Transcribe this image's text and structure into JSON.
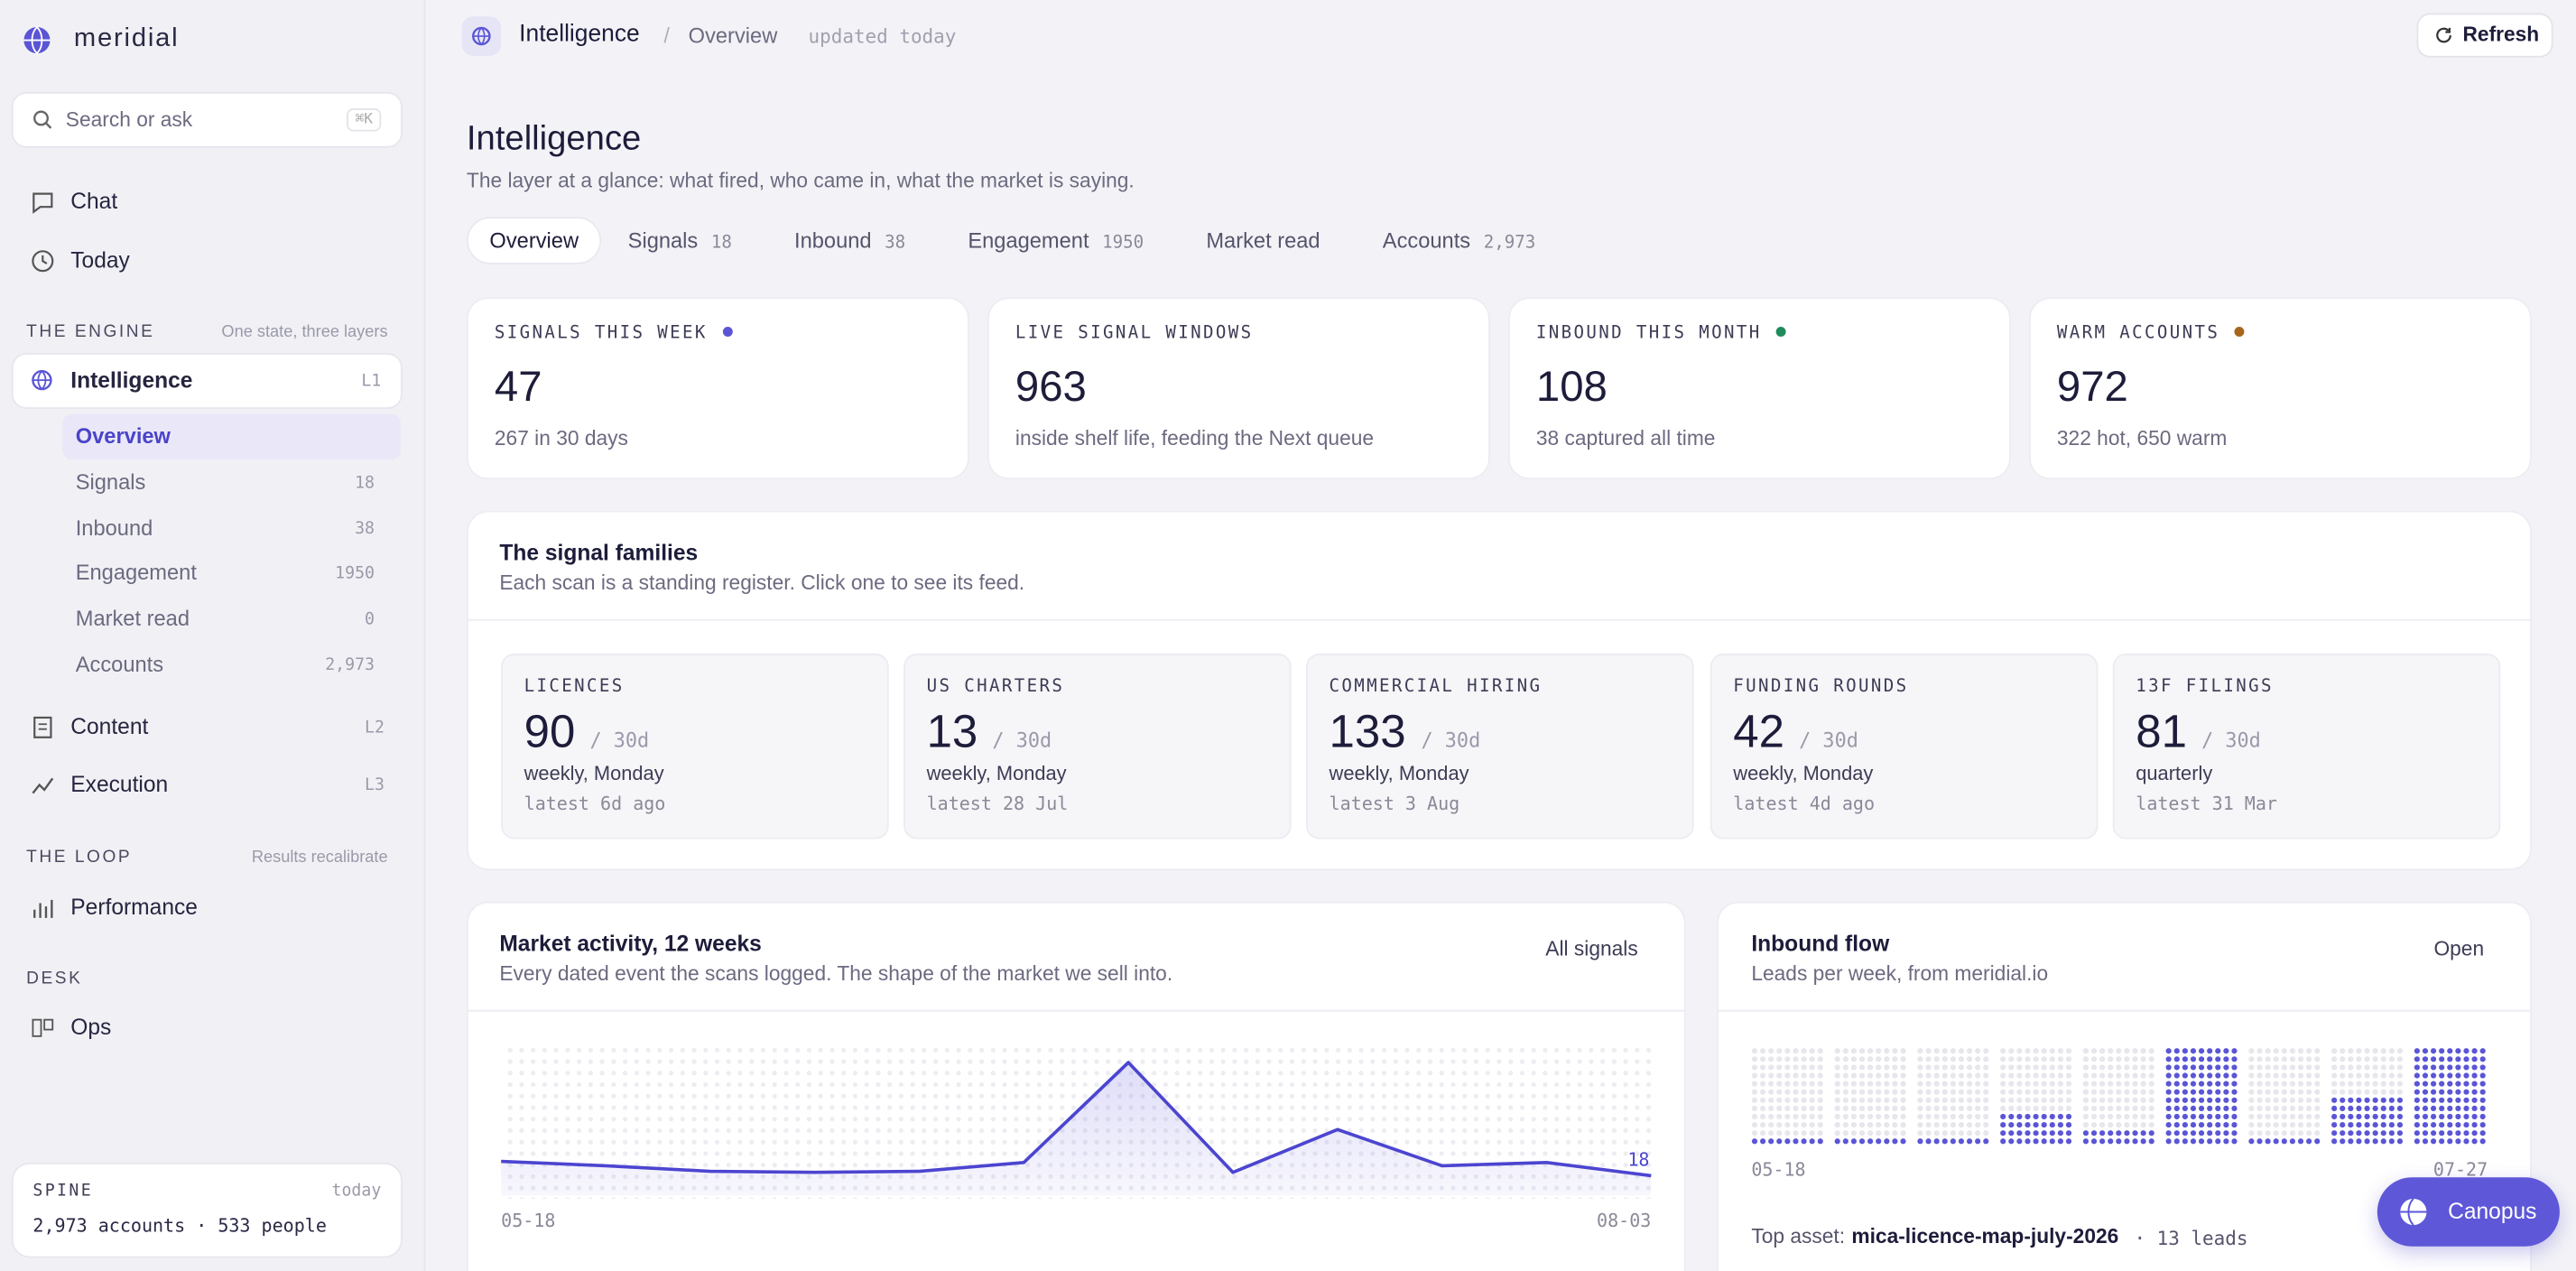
{
  "brand": "meridial",
  "sidebar": {
    "search": "Search or ask",
    "shortcut": "⌘K",
    "top": [
      "Chat",
      "Today"
    ],
    "engine": {
      "title": "THE ENGINE",
      "note": "One state, three layers"
    },
    "intelligence": {
      "label": "Intelligence",
      "level": "L1"
    },
    "subitems": [
      {
        "label": "Overview",
        "count": ""
      },
      {
        "label": "Signals",
        "count": "18"
      },
      {
        "label": "Inbound",
        "count": "38"
      },
      {
        "label": "Engagement",
        "count": "1950"
      },
      {
        "label": "Market read",
        "count": "0"
      },
      {
        "label": "Accounts",
        "count": "2,973"
      }
    ],
    "content": {
      "label": "Content",
      "level": "L2"
    },
    "execution": {
      "label": "Execution",
      "level": "L3"
    },
    "loop": {
      "title": "THE LOOP",
      "note": "Results recalibrate"
    },
    "performance": "Performance",
    "desk": "DESK",
    "ops": "Ops",
    "spine": {
      "title": "SPINE",
      "when": "today",
      "text": "2,973 accounts · 533 people"
    }
  },
  "topbar": {
    "section": "Intelligence",
    "sep": "/",
    "page": "Overview",
    "updated": "updated today",
    "refresh": "Refresh"
  },
  "header": {
    "title": "Intelligence",
    "subtitle": "The layer at a glance: what fired, who came in, what the market is saying."
  },
  "tabs": [
    {
      "label": "Overview"
    },
    {
      "label": "Signals",
      "count": "18"
    },
    {
      "label": "Inbound",
      "count": "38"
    },
    {
      "label": "Engagement",
      "count": "1950"
    },
    {
      "label": "Market read"
    },
    {
      "label": "Accounts",
      "count": "2,973"
    }
  ],
  "stats": [
    {
      "label": "SIGNALS THIS WEEK",
      "dot": "#5b55d6",
      "value": "47",
      "sub": "267 in 30 days"
    },
    {
      "label": "LIVE SIGNAL WINDOWS",
      "value": "963",
      "sub": "inside shelf life, feeding the Next queue"
    },
    {
      "label": "INBOUND THIS MONTH",
      "dot": "#1f8a5b",
      "value": "108",
      "sub": "38 captured all time"
    },
    {
      "label": "WARM ACCOUNTS",
      "dot": "#a8661c",
      "value": "972",
      "sub": "322 hot, 650 warm"
    }
  ],
  "families": {
    "title": "The signal families",
    "subtitle": "Each scan is a standing register. Click one to see its feed.",
    "items": [
      {
        "name": "LICENCES",
        "count": "90",
        "per": "/ 30d",
        "cadence": "weekly, Monday",
        "latest": "latest 6d ago"
      },
      {
        "name": "US CHARTERS",
        "count": "13",
        "per": "/ 30d",
        "cadence": "weekly, Monday",
        "latest": "latest 28 Jul"
      },
      {
        "name": "COMMERCIAL HIRING",
        "count": "133",
        "per": "/ 30d",
        "cadence": "weekly, Monday",
        "latest": "latest 3 Aug"
      },
      {
        "name": "FUNDING ROUNDS",
        "count": "42",
        "per": "/ 30d",
        "cadence": "weekly, Monday",
        "latest": "latest 4d ago"
      },
      {
        "name": "13F FILINGS",
        "count": "81",
        "per": "/ 30d",
        "cadence": "quarterly",
        "latest": "latest 31 Mar"
      }
    ]
  },
  "market": {
    "title": "Market activity, 12 weeks",
    "subtitle": "Every dated event the scans logged. The shape of the market we sell into.",
    "action": "All signals",
    "chart_data": {
      "type": "line",
      "categories": [
        "05-18",
        null,
        null,
        null,
        null,
        null,
        null,
        null,
        null,
        null,
        null,
        "08-03"
      ],
      "values": [
        31,
        27,
        22,
        21,
        22,
        30,
        121,
        21,
        60,
        27,
        30,
        18
      ],
      "color": "#4c45d0",
      "ylim": [
        0,
        130
      ]
    }
  },
  "inbound": {
    "title": "Inbound flow",
    "subtitle": "Leads per week, from meridial.io",
    "action": "Open",
    "chart_data": {
      "type": "dotbar",
      "categories": [
        "05-18",
        null,
        null,
        null,
        null,
        null,
        null,
        null,
        "07-27"
      ],
      "values": [
        1,
        1,
        1,
        4,
        2,
        12,
        1,
        6,
        12
      ],
      "color": "#5b55d6",
      "ylim": [
        0,
        12
      ]
    },
    "top_label": "Top asset:",
    "top_asset": "mica-licence-map-july-2026",
    "top_leads": "· 13 leads"
  },
  "assistant": "Canopus"
}
